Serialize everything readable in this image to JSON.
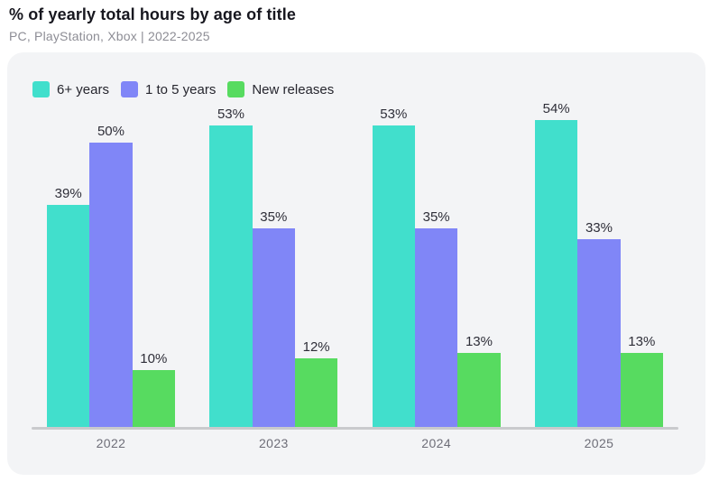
{
  "header": {
    "title": "% of yearly total hours by age of title",
    "subtitle": "PC, PlayStation, Xbox | 2022-2025"
  },
  "colors": {
    "teal": "#41dfcc",
    "purple": "#8086f7",
    "green": "#57db60",
    "panel_background": "#f3f4f6",
    "axis": "#c9cacd"
  },
  "chart_data": {
    "type": "bar",
    "title": "% of yearly total hours by age of title",
    "subtitle": "PC, PlayStation, Xbox | 2022-2025",
    "categories": [
      "2022",
      "2023",
      "2024",
      "2025"
    ],
    "series": [
      {
        "name": "6+ years",
        "color": "#41dfcc",
        "values": [
          39,
          53,
          53,
          54
        ]
      },
      {
        "name": "1 to 5 years",
        "color": "#8086f7",
        "values": [
          50,
          35,
          35,
          33
        ]
      },
      {
        "name": "New releases",
        "color": "#57db60",
        "values": [
          10,
          12,
          13,
          13
        ]
      }
    ],
    "value_suffix": "%",
    "xlabel": "",
    "ylabel": "",
    "ylim": [
      0,
      60
    ],
    "grid": false,
    "y_axis_visible": false,
    "legend_position": "top-left",
    "data_labels": true
  }
}
